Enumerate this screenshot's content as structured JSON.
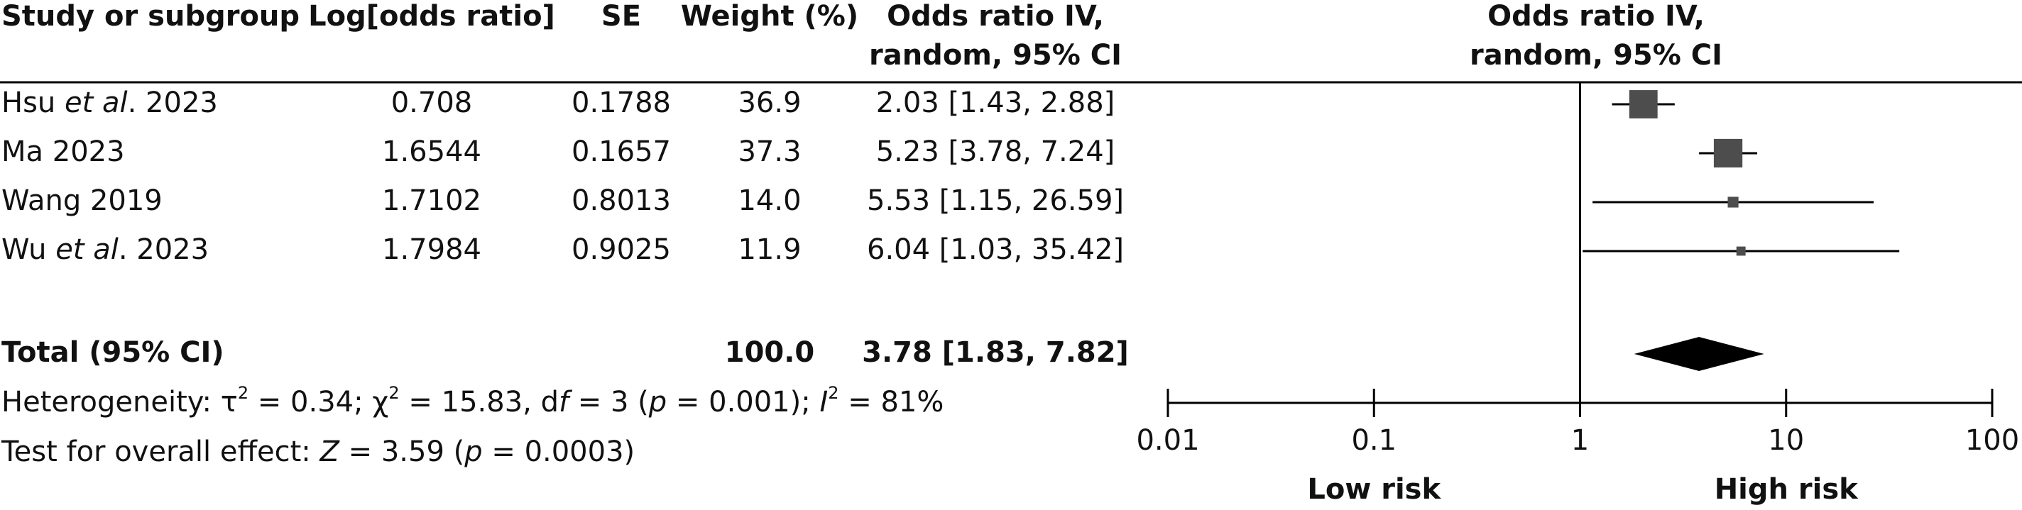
{
  "chart_data": {
    "type": "forest",
    "columns": [
      "Study or subgroup",
      "Log[odds ratio]",
      "SE",
      "Weight (%)",
      [
        "Odds ratio IV,",
        "random, 95% CI"
      ]
    ],
    "plot_header": [
      "Odds ratio IV,",
      "random, 95% CI"
    ],
    "studies": [
      [
        {
          "text": "Hsu "
        },
        {
          "text": "et al",
          "italic": true
        },
        {
          "text": ". 2023"
        }
      ],
      [
        {
          "text": "Ma 2023"
        }
      ],
      [
        {
          "text": "Wang 2019"
        }
      ],
      [
        {
          "text": "Wu "
        },
        {
          "text": "et al",
          "italic": true
        },
        {
          "text": ". 2023"
        }
      ]
    ],
    "log_or": [
      0.708,
      1.6544,
      1.7102,
      1.7984
    ],
    "se": [
      0.1788,
      0.1657,
      0.8013,
      0.9025
    ],
    "weights": [
      36.9,
      37.3,
      14.0,
      11.9
    ],
    "weight_labels": [
      "36.9",
      "37.3",
      "14.0",
      "11.9"
    ],
    "or": [
      2.03,
      5.23,
      5.53,
      6.04
    ],
    "ci_low": [
      1.43,
      3.78,
      1.15,
      1.03
    ],
    "ci_high": [
      2.88,
      7.24,
      26.59,
      35.42
    ],
    "ci_labels": [
      "2.03 [1.43, 2.88]",
      "5.23 [3.78, 7.24]",
      "5.53 [1.15, 26.59]",
      "6.04 [1.03, 35.42]"
    ],
    "total": {
      "name": "Total (95% CI)",
      "weight_label": "100.0",
      "or": 3.78,
      "ci_low": 1.83,
      "ci_high": 7.82,
      "ci_label": "3.78 [1.83, 7.82]"
    },
    "heterogeneity": [
      {
        "text": "Heterogeneity: τ"
      },
      {
        "text": "2",
        "sup": true
      },
      {
        "text": " = 0.34; χ"
      },
      {
        "text": "2",
        "sup": true
      },
      {
        "text": " = 15.83, d"
      },
      {
        "text": "f",
        "italic": true
      },
      {
        "text": " = 3 ("
      },
      {
        "text": "p",
        "italic": true
      },
      {
        "text": " = 0.001); "
      },
      {
        "text": "I",
        "italic": true
      },
      {
        "text": "2",
        "sup": true
      },
      {
        "text": " = 81%"
      }
    ],
    "overall_effect": [
      {
        "text": "Test for overall effect: "
      },
      {
        "text": "Z",
        "italic": true
      },
      {
        "text": " = 3.59 ("
      },
      {
        "text": "p",
        "italic": true
      },
      {
        "text": " = 0.0003)"
      }
    ],
    "log_scale": true,
    "xlim": [
      0.01,
      100
    ],
    "xticks": [
      0.01,
      0.1,
      1,
      10,
      100
    ],
    "x_labels": [
      "Low risk",
      "High risk"
    ],
    "color": "#4d4d4d",
    "diamond_color": "#000000"
  }
}
